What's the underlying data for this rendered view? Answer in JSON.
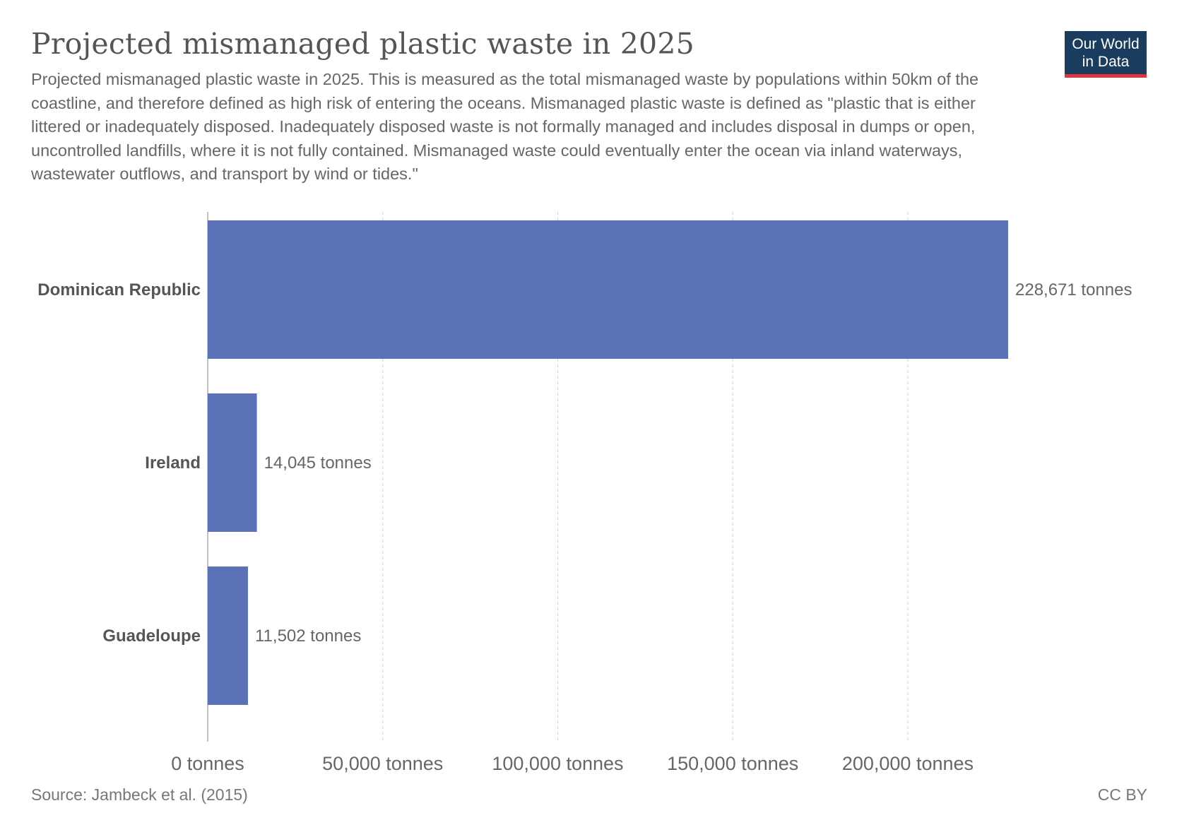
{
  "title": "Projected mismanaged plastic waste in 2025",
  "subtitle": "Projected mismanaged plastic waste in 2025. This is measured as the total mismanaged waste by populations within 50km of the coastline, and therefore defined as high risk of entering the oceans. Mismanaged plastic waste is defined as \"plastic that is either littered or inadequately disposed. Inadequately disposed waste is not formally managed and includes disposal in dumps or open, uncontrolled landfills, where it is not fully contained. Mismanaged waste could eventually enter the ocean via inland waterways, wastewater outflows, and transport by wind or tides.\"",
  "logo": {
    "line1": "Our World",
    "line2": "in Data"
  },
  "colors": {
    "bar": "#5b72b8",
    "grid": "#d3d3d3",
    "axis": "#999999",
    "logo_bg": "#1a3d5f",
    "logo_accent": "#e3323c"
  },
  "chart_data": {
    "type": "bar",
    "orientation": "horizontal",
    "categories": [
      "Dominican Republic",
      "Ireland",
      "Guadeloupe"
    ],
    "values": [
      228671,
      14045,
      11502
    ],
    "value_labels": [
      "228,671 tonnes",
      "14,045 tonnes",
      "11,502 tonnes"
    ],
    "xlim": [
      0,
      228671
    ],
    "xticks": [
      0,
      50000,
      100000,
      150000,
      200000
    ],
    "xtick_labels": [
      "0 tonnes",
      "50,000 tonnes",
      "100,000 tonnes",
      "150,000 tonnes",
      "200,000 tonnes"
    ],
    "grid": true
  },
  "footer": {
    "source": "Source: Jambeck et al. (2015)",
    "license": "CC BY"
  }
}
